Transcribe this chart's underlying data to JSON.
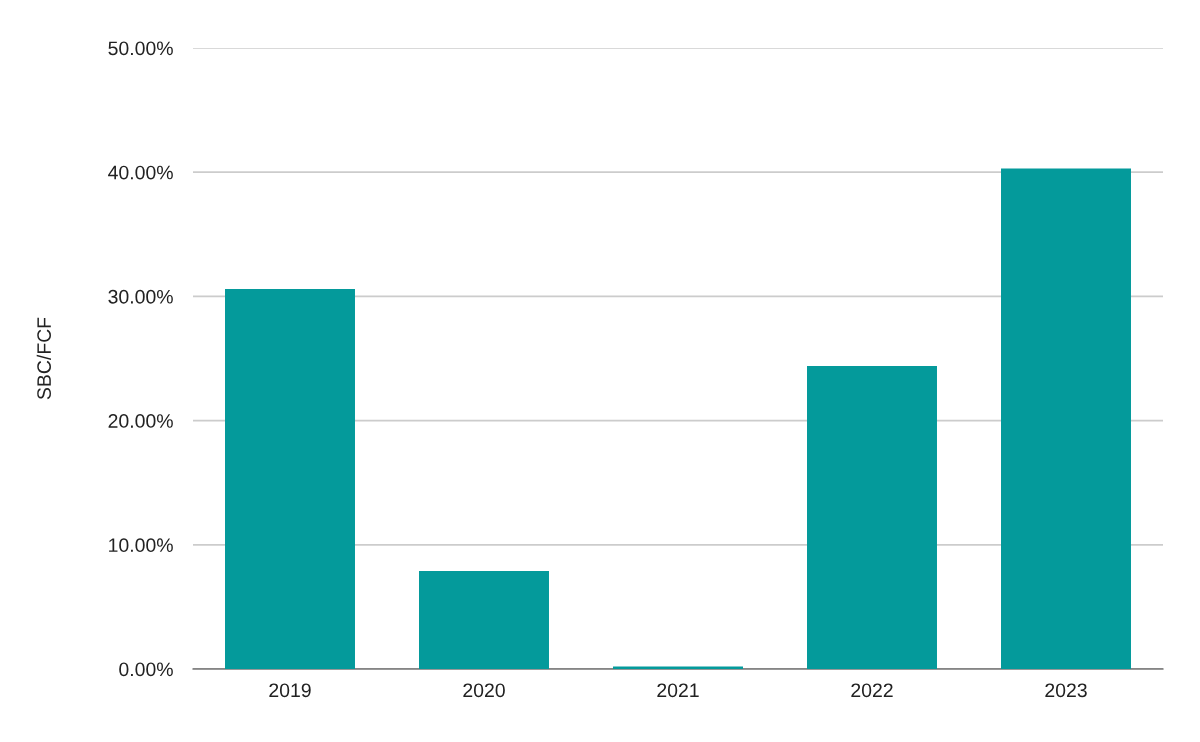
{
  "chart_data": {
    "type": "bar",
    "ylabel": "SBC/FCF",
    "categories": [
      "2019",
      "2020",
      "2021",
      "2022",
      "2023"
    ],
    "values": [
      30.6,
      7.9,
      0.2,
      24.4,
      40.3
    ],
    "color": "#049a9b",
    "ylim": [
      0,
      50
    ],
    "yticks": [
      {
        "value": 0,
        "label": "0.00%"
      },
      {
        "value": 10,
        "label": "10.00%"
      },
      {
        "value": 20,
        "label": "20.00%"
      },
      {
        "value": 30,
        "label": "30.00%"
      },
      {
        "value": 40,
        "label": "40.00%"
      },
      {
        "value": 50,
        "label": "50.00%"
      }
    ],
    "grid": "y",
    "legend": false
  }
}
